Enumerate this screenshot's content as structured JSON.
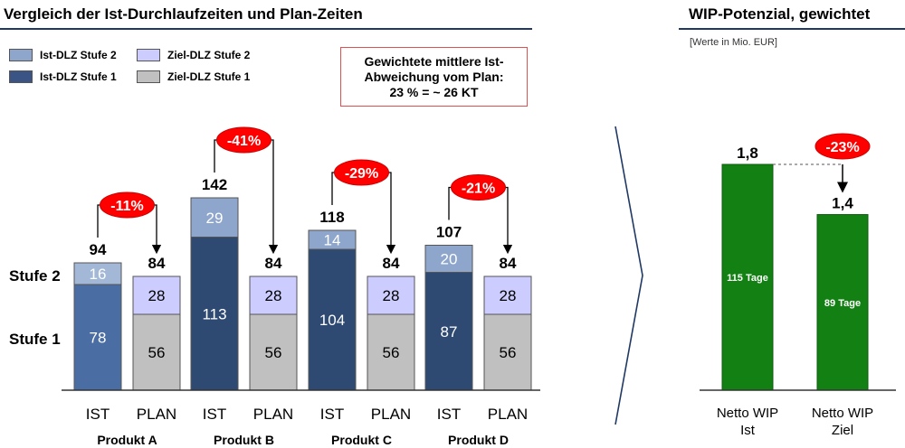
{
  "left_panel": {
    "title": "Vergleich der Ist-Durchlaufzeiten und Plan-Zeiten",
    "legend": [
      {
        "label": "Ist-DLZ Stufe 2",
        "color": "#8ea6cc"
      },
      {
        "label": "Ziel-DLZ Stufe 2",
        "color": "#ccccff"
      },
      {
        "label": "Ist-DLZ Stufe 1",
        "color": "#3a5585"
      },
      {
        "label": "Ziel-DLZ Stufe 1",
        "color": "#c0c0c0"
      }
    ],
    "note_lines": [
      "Gewichtete mittlere Ist-",
      "Abweichung vom Plan:",
      "23 % = ~ 26 KT"
    ],
    "stage_labels": {
      "stufe2": "Stufe 2",
      "stufe1": "Stufe 1"
    }
  },
  "right_panel": {
    "title": "WIP-Potenzial, gewichtet",
    "subtitle": "[Werte in Mio. EUR]"
  },
  "chart_data": [
    {
      "type": "bar",
      "stacked": true,
      "x_tick_labels": [
        "IST",
        "PLAN",
        "IST",
        "PLAN",
        "IST",
        "PLAN",
        "IST",
        "PLAN"
      ],
      "groups": [
        "Produkt A",
        "Produkt B",
        "Produkt C",
        "Produkt D"
      ],
      "series": [
        {
          "name": "Ist-DLZ Stufe 1",
          "values": [
            78,
            null,
            113,
            null,
            104,
            null,
            87,
            null
          ]
        },
        {
          "name": "Ist-DLZ Stufe 2",
          "values": [
            16,
            null,
            29,
            null,
            14,
            null,
            20,
            null
          ]
        },
        {
          "name": "Ziel-DLZ Stufe 1",
          "values": [
            null,
            56,
            null,
            56,
            null,
            56,
            null,
            56
          ]
        },
        {
          "name": "Ziel-DLZ Stufe 2",
          "values": [
            null,
            28,
            null,
            28,
            null,
            28,
            null,
            28
          ]
        }
      ],
      "totals": [
        94,
        84,
        142,
        84,
        118,
        84,
        107,
        84
      ],
      "deviations": [
        "-11%",
        "-41%",
        "-29%",
        "-21%"
      ],
      "colors": {
        "ist_stufe1": [
          "#4a6ea3",
          "#2f4a72",
          "#2f4a72",
          "#2f4a72"
        ],
        "ist_stufe2": [
          "#a3b8d6",
          "#8ea6cc",
          "#8ea6cc",
          "#8ea6cc"
        ],
        "ziel_stufe1": "#c0c0c0",
        "ziel_stufe2": "#ccccff"
      }
    },
    {
      "type": "bar",
      "categories": [
        "Netto WIP Ist",
        "Netto WIP Ziel"
      ],
      "values": [
        1.8,
        1.4
      ],
      "value_labels": [
        "1,8",
        "1,4"
      ],
      "bar_labels": [
        "115 Tage",
        "89 Tage"
      ],
      "deviation": "-23%",
      "color": "#138013",
      "ylim": [
        0,
        1.8
      ]
    }
  ]
}
